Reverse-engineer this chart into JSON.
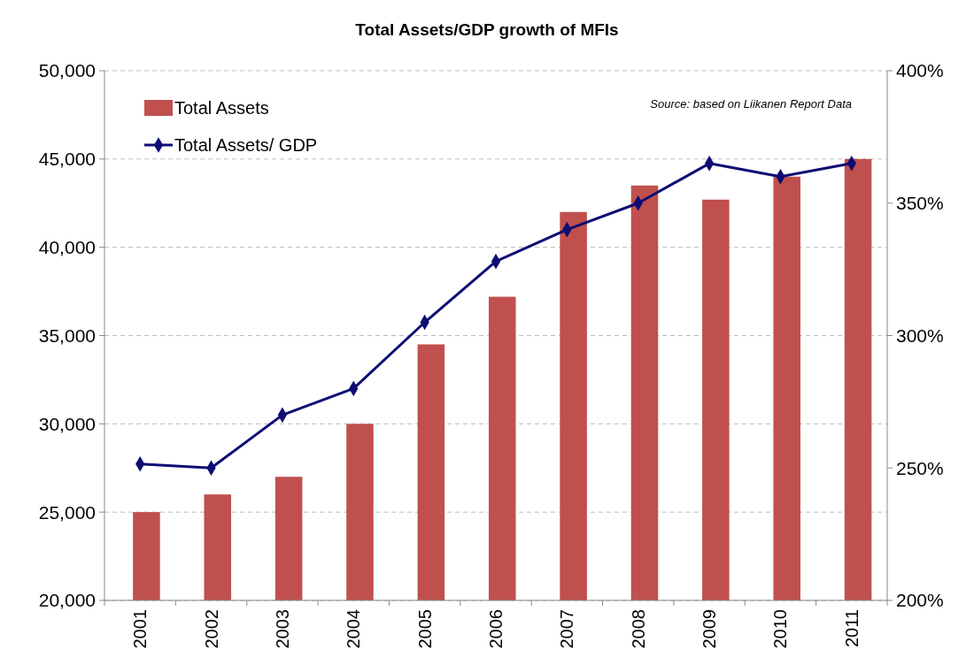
{
  "chart_data": {
    "type": "bar",
    "title": "Total Assets/GDP growth of MFIs",
    "categories": [
      "2001",
      "2002",
      "2003",
      "2004",
      "2005",
      "2006",
      "2007",
      "2008",
      "2009",
      "2010",
      "2011"
    ],
    "series": [
      {
        "name": "Total Assets",
        "color": "#c0504d",
        "values": [
          25000,
          26000,
          27000,
          30000,
          34500,
          37200,
          42000,
          43500,
          42700,
          44000,
          45000
        ]
      },
      {
        "name": "Total Assets/ GDP",
        "type": "line",
        "axis": "y2",
        "color": "#0d0d73",
        "marker": "diamond",
        "values": [
          251.5,
          250,
          270,
          280,
          305,
          328,
          340,
          350,
          365,
          360,
          365
        ]
      }
    ],
    "ylim": [
      20000,
      50000
    ],
    "yticks": [
      {
        "value": 20000,
        "label": "20,000"
      },
      {
        "value": 25000,
        "label": "25,000"
      },
      {
        "value": 30000,
        "label": "30,000"
      },
      {
        "value": 35000,
        "label": "35,000"
      },
      {
        "value": 40000,
        "label": "40,000"
      },
      {
        "value": 45000,
        "label": "45,000"
      },
      {
        "value": 50000,
        "label": "50,000"
      }
    ],
    "y2lim": [
      200,
      400
    ],
    "y2ticks": [
      {
        "value": 200,
        "label": "200%"
      },
      {
        "value": 250,
        "label": "250%"
      },
      {
        "value": 300,
        "label": "300%"
      },
      {
        "value": 350,
        "label": "350%"
      },
      {
        "value": 400,
        "label": "400%"
      }
    ],
    "grid": "y",
    "legend": "top left",
    "annotations": [
      "Source: based on Liikanen Report Data"
    ]
  }
}
